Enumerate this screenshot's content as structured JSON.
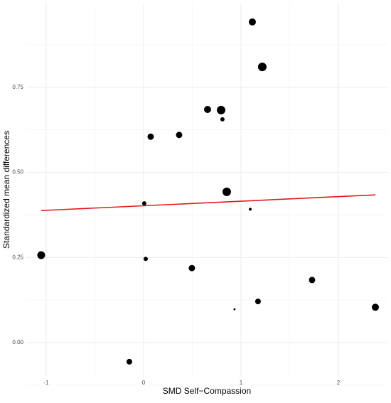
{
  "chart_data": {
    "type": "scatter",
    "xlabel": "SMD Self−Compassion",
    "ylabel": "Standardized mean differences",
    "x": [
      1.117,
      1.219,
      0.657,
      0.796,
      0.81,
      0.073,
      0.365,
      0.854,
      0.007,
      1.095,
      -1.051,
      0.022,
      0.496,
      1.73,
      1.175,
      0.934,
      2.38,
      -0.146
    ],
    "series": [
      {
        "color": "#000000",
        "values": [
          0.942,
          0.81,
          0.685,
          0.683,
          0.656,
          0.605,
          0.61,
          0.443,
          0.409,
          0.392,
          0.257,
          0.246,
          0.219,
          0.184,
          0.121,
          0.098,
          0.104,
          -0.056
        ],
        "sizes": [
          25,
          36,
          25,
          36,
          9,
          20,
          20,
          36,
          9,
          4,
          30,
          9,
          20,
          20,
          16,
          2,
          25,
          16
        ]
      }
    ],
    "trend": {
      "x": [
        -1.051,
        2.38
      ],
      "y": [
        0.388,
        0.434
      ],
      "color": "#e31a1c"
    },
    "xlim": [
      -1.204,
      2.504
    ],
    "ylim": [
      -0.1,
      0.996
    ],
    "xticks": [
      -1,
      0,
      1,
      2
    ],
    "yticks": [
      {
        "value": 0,
        "label": "0.00"
      },
      0.25,
      {
        "value": 0.5,
        "label": "0.50"
      },
      0.75
    ],
    "minor_xticks": [
      -0.5,
      0.5,
      1.5
    ],
    "minor_yticks": [
      -0.125,
      0.125,
      0.375,
      0.625,
      0.875
    ],
    "grid": true
  }
}
